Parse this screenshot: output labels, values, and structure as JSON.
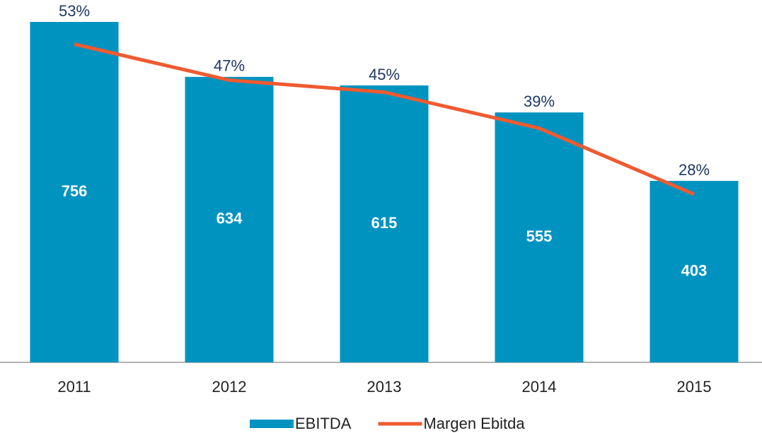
{
  "chart_data": {
    "type": "bar-line",
    "categories": [
      "2011",
      "2012",
      "2013",
      "2014",
      "2015"
    ],
    "series": [
      {
        "name": "EBITDA",
        "type": "bar",
        "color": "#0093c0",
        "values": [
          756,
          634,
          615,
          555,
          403
        ]
      },
      {
        "name": "Margen Ebitda",
        "type": "line",
        "axis": "y2",
        "color": "#f05a30",
        "values": [
          53,
          47,
          45,
          39,
          28
        ],
        "value_labels": [
          "53%",
          "47%",
          "45%",
          "39%",
          "28%"
        ]
      }
    ],
    "ylim": [
      0,
      800
    ],
    "y2lim": [
      0,
      60
    ],
    "legend": "bottom"
  }
}
